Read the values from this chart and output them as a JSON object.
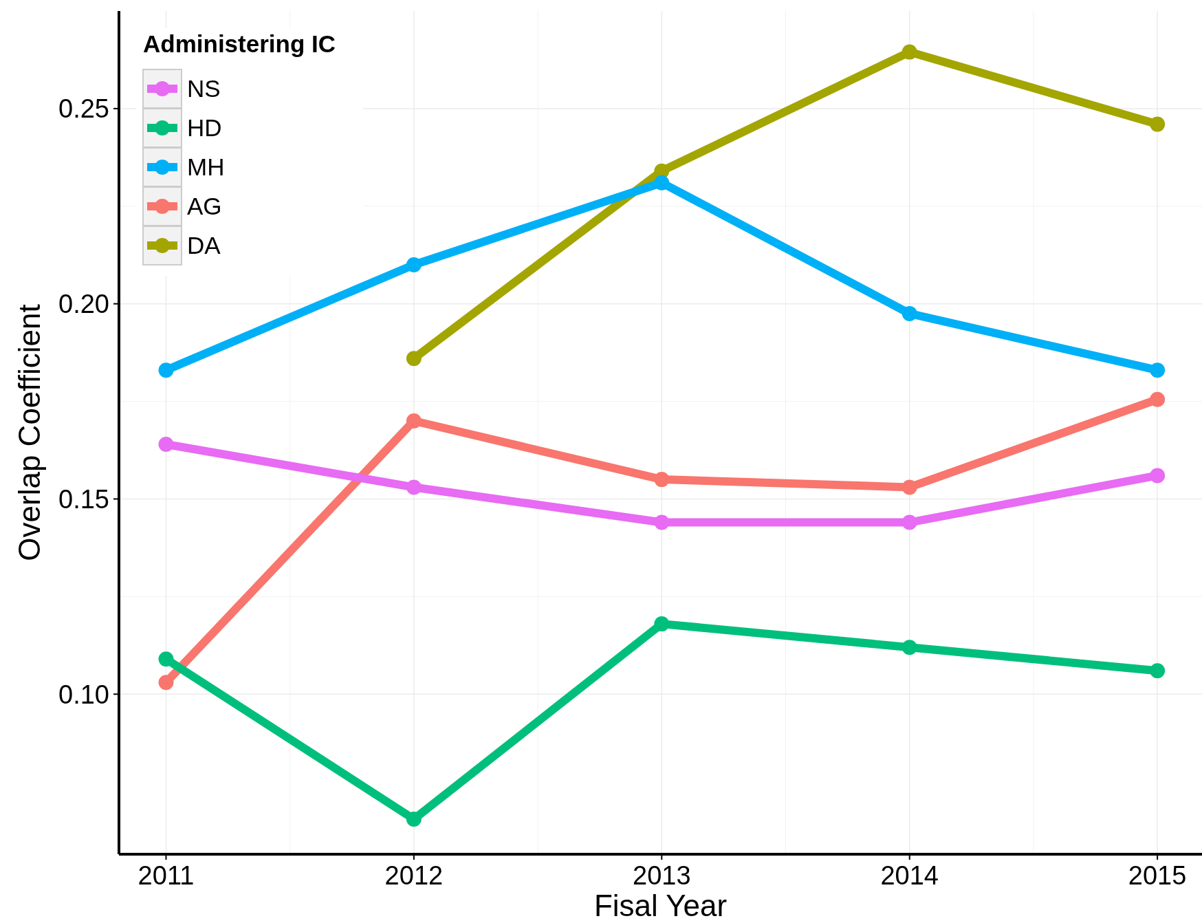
{
  "chart_data": {
    "type": "line",
    "xlabel": "Fisal Year",
    "ylabel": "Overlap Coefficient",
    "legend_title": "Administering IC",
    "x": [
      2011,
      2012,
      2013,
      2014,
      2015
    ],
    "series": [
      {
        "name": "NS",
        "color": "#e76bf3",
        "values": [
          0.164,
          0.153,
          0.144,
          0.144,
          0.156
        ]
      },
      {
        "name": "HD",
        "color": "#00bf7d",
        "values": [
          0.109,
          0.068,
          0.118,
          0.112,
          0.106
        ]
      },
      {
        "name": "MH",
        "color": "#00b0f6",
        "values": [
          0.183,
          0.21,
          0.231,
          0.1975,
          0.183
        ]
      },
      {
        "name": "AG",
        "color": "#f8766d",
        "values": [
          0.103,
          0.17,
          0.155,
          0.153,
          0.1755
        ]
      },
      {
        "name": "DA",
        "color": "#a3a500",
        "values": [
          null,
          0.186,
          0.234,
          0.2645,
          0.246
        ]
      }
    ],
    "xlim": [
      2010.81,
      2015.18
    ],
    "ylim": [
      0.059,
      0.275
    ],
    "xticks": [
      2011,
      2012,
      2013,
      2014,
      2015
    ],
    "yticks": [
      {
        "value": 0.1,
        "label": "0.10"
      },
      {
        "value": 0.15,
        "label": "0.15"
      },
      {
        "value": 0.2,
        "label": "0.20"
      },
      {
        "value": 0.25,
        "label": "0.25"
      }
    ],
    "grid": true,
    "legend": "top left",
    "marker": "circle",
    "line_style": "solid"
  }
}
